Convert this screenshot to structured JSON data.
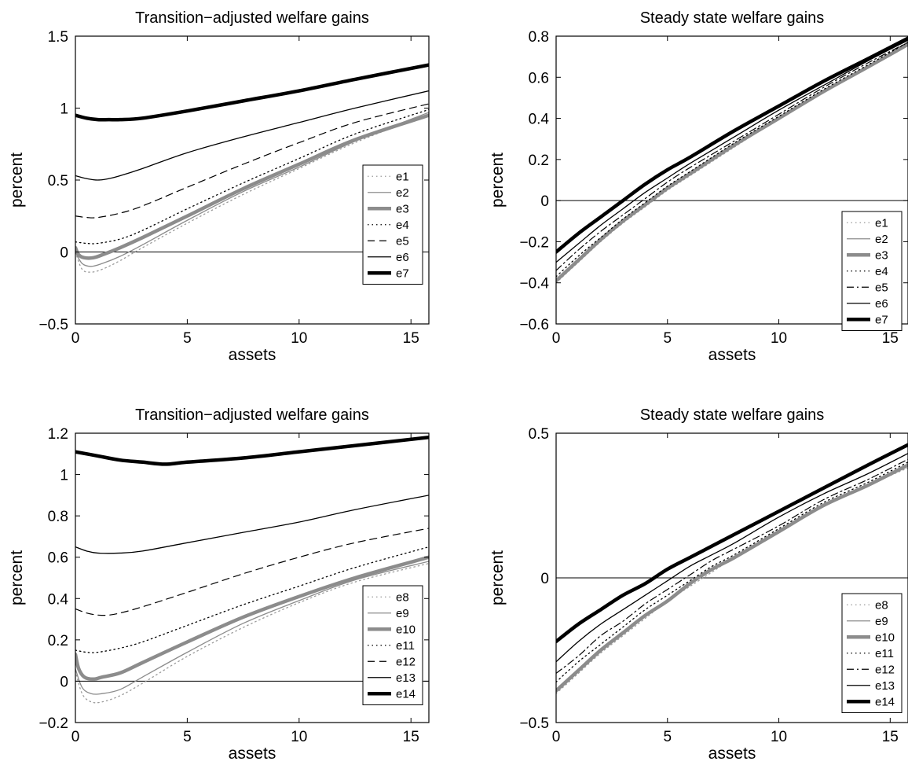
{
  "chart_data": [
    {
      "type": "line",
      "title": "Transition−adjusted welfare gains",
      "xlabel": "assets",
      "ylabel": "percent",
      "xlim": [
        0,
        15.8
      ],
      "ylim": [
        -0.5,
        1.5
      ],
      "xticks": [
        0,
        5,
        10,
        15
      ],
      "yticks": [
        -0.5,
        0,
        0.5,
        1,
        1.5
      ],
      "xtick_labels": [
        "0",
        "5",
        "10",
        "15"
      ],
      "ytick_labels": [
        "−0.5",
        "0",
        "0.5",
        "1",
        "1.5"
      ],
      "zero_line": true,
      "legend": "center-right",
      "series": [
        {
          "name": "e1",
          "style": "dotted-gray",
          "x": [
            0,
            0.3,
            0.7,
            1.2,
            2,
            3,
            5,
            7.5,
            10,
            12.5,
            15.8
          ],
          "y": [
            0.0,
            -0.12,
            -0.14,
            -0.12,
            -0.06,
            0.03,
            0.2,
            0.4,
            0.58,
            0.76,
            0.96
          ]
        },
        {
          "name": "e2",
          "style": "thin-gray",
          "x": [
            0,
            0.3,
            0.7,
            1.2,
            2,
            3,
            5,
            7.5,
            10,
            12.5,
            15.8
          ],
          "y": [
            0.0,
            -0.08,
            -0.1,
            -0.08,
            -0.03,
            0.05,
            0.22,
            0.42,
            0.59,
            0.77,
            0.97
          ]
        },
        {
          "name": "e3",
          "style": "thick-gray",
          "x": [
            0,
            0.15,
            0.4,
            0.8,
            1.2,
            2,
            3,
            5,
            7.5,
            10,
            12.5,
            15.8
          ],
          "y": [
            0.03,
            -0.02,
            -0.04,
            -0.04,
            -0.02,
            0.03,
            0.1,
            0.25,
            0.44,
            0.61,
            0.78,
            0.95
          ]
        },
        {
          "name": "e4",
          "style": "dotted-black",
          "x": [
            0,
            0.5,
            1,
            2,
            3,
            5,
            7.5,
            10,
            12.5,
            15.8
          ],
          "y": [
            0.07,
            0.06,
            0.06,
            0.09,
            0.15,
            0.3,
            0.48,
            0.65,
            0.82,
            0.99
          ]
        },
        {
          "name": "e5",
          "style": "dashed-black",
          "x": [
            0,
            0.5,
            1,
            2,
            3,
            5,
            7.5,
            10,
            12.5,
            15.8
          ],
          "y": [
            0.25,
            0.24,
            0.24,
            0.27,
            0.32,
            0.45,
            0.61,
            0.76,
            0.9,
            1.03
          ]
        },
        {
          "name": "e6",
          "style": "thin-black",
          "x": [
            0,
            0.5,
            1,
            1.5,
            2,
            3,
            5,
            7.5,
            10,
            12.5,
            15.8
          ],
          "y": [
            0.53,
            0.51,
            0.5,
            0.51,
            0.53,
            0.58,
            0.69,
            0.8,
            0.9,
            1.0,
            1.12
          ]
        },
        {
          "name": "e7",
          "style": "thick-black",
          "x": [
            0,
            0.5,
            1,
            1.5,
            2,
            3,
            5,
            7.5,
            10,
            12.5,
            15.8
          ],
          "y": [
            0.95,
            0.93,
            0.92,
            0.92,
            0.92,
            0.93,
            0.98,
            1.05,
            1.12,
            1.2,
            1.3
          ]
        }
      ]
    },
    {
      "type": "line",
      "title": "Steady state welfare gains",
      "xlabel": "assets",
      "ylabel": "percent",
      "xlim": [
        0,
        15.8
      ],
      "ylim": [
        -0.6,
        0.8
      ],
      "xticks": [
        0,
        5,
        10,
        15
      ],
      "yticks": [
        -0.6,
        -0.4,
        -0.2,
        0,
        0.2,
        0.4,
        0.6,
        0.8
      ],
      "xtick_labels": [
        "0",
        "5",
        "10",
        "15"
      ],
      "ytick_labels": [
        "−0.6",
        "−0.4",
        "−0.2",
        "0",
        "0.2",
        "0.4",
        "0.6",
        "0.8"
      ],
      "zero_line": true,
      "legend": "bottom-right",
      "series": [
        {
          "name": "e1",
          "style": "dotted-gray",
          "x": [
            0,
            1,
            2,
            3,
            4,
            5,
            6,
            8,
            10,
            12,
            14,
            15.8
          ],
          "y": [
            -0.4,
            -0.3,
            -0.2,
            -0.11,
            -0.03,
            0.05,
            0.12,
            0.26,
            0.4,
            0.53,
            0.65,
            0.76
          ]
        },
        {
          "name": "e2",
          "style": "thin-gray",
          "x": [
            0,
            1,
            2,
            3,
            4,
            5,
            6,
            8,
            10,
            12,
            14,
            15.8
          ],
          "y": [
            -0.39,
            -0.29,
            -0.19,
            -0.1,
            -0.02,
            0.06,
            0.13,
            0.27,
            0.4,
            0.53,
            0.65,
            0.76
          ]
        },
        {
          "name": "e3",
          "style": "thick-gray",
          "x": [
            0,
            1,
            2,
            3,
            4,
            5,
            6,
            8,
            10,
            12,
            14,
            15.8
          ],
          "y": [
            -0.39,
            -0.29,
            -0.19,
            -0.1,
            -0.02,
            0.06,
            0.13,
            0.27,
            0.4,
            0.53,
            0.65,
            0.76
          ]
        },
        {
          "name": "e4",
          "style": "dotted-black",
          "x": [
            0,
            1,
            2,
            3,
            4,
            5,
            6,
            8,
            10,
            12,
            14,
            15.8
          ],
          "y": [
            -0.37,
            -0.27,
            -0.18,
            -0.09,
            -0.01,
            0.07,
            0.14,
            0.28,
            0.41,
            0.54,
            0.66,
            0.77
          ]
        },
        {
          "name": "e5",
          "style": "dashdot-black",
          "x": [
            0,
            1,
            2,
            3,
            4,
            5,
            6,
            8,
            10,
            12,
            14,
            15.8
          ],
          "y": [
            -0.34,
            -0.24,
            -0.15,
            -0.07,
            0.01,
            0.09,
            0.16,
            0.29,
            0.42,
            0.55,
            0.67,
            0.77
          ]
        },
        {
          "name": "e6",
          "style": "thin-black",
          "x": [
            0,
            1,
            2,
            3,
            4,
            5,
            6,
            8,
            10,
            12,
            14,
            15.8
          ],
          "y": [
            -0.3,
            -0.21,
            -0.12,
            -0.04,
            0.04,
            0.11,
            0.18,
            0.31,
            0.44,
            0.56,
            0.68,
            0.78
          ]
        },
        {
          "name": "e7",
          "style": "thick-black",
          "x": [
            0,
            1,
            2,
            3,
            4,
            5,
            6,
            8,
            10,
            12,
            14,
            15.8
          ],
          "y": [
            -0.25,
            -0.16,
            -0.08,
            0.0,
            0.08,
            0.15,
            0.21,
            0.34,
            0.46,
            0.58,
            0.69,
            0.79
          ]
        }
      ]
    },
    {
      "type": "line",
      "title": "Transition−adjusted welfare gains",
      "xlabel": "assets",
      "ylabel": "percent",
      "xlim": [
        0,
        15.8
      ],
      "ylim": [
        -0.2,
        1.2
      ],
      "xticks": [
        0,
        5,
        10,
        15
      ],
      "yticks": [
        -0.2,
        0,
        0.2,
        0.4,
        0.6,
        0.8,
        1,
        1.2
      ],
      "xtick_labels": [
        "0",
        "5",
        "10",
        "15"
      ],
      "ytick_labels": [
        "−0.2",
        "0",
        "0.2",
        "0.4",
        "0.6",
        "0.8",
        "1",
        "1.2"
      ],
      "zero_line": true,
      "legend": "bottom-right",
      "series": [
        {
          "name": "e8",
          "style": "dotted-gray",
          "x": [
            0,
            0.3,
            0.7,
            1.2,
            2,
            3,
            5,
            7.5,
            10,
            12.5,
            15.8
          ],
          "y": [
            0.05,
            -0.06,
            -0.1,
            -0.1,
            -0.07,
            -0.01,
            0.12,
            0.26,
            0.38,
            0.48,
            0.57
          ]
        },
        {
          "name": "e9",
          "style": "thin-gray",
          "x": [
            0,
            0.3,
            0.7,
            1.2,
            2,
            3,
            5,
            7.5,
            10,
            12.5,
            15.8
          ],
          "y": [
            0.06,
            -0.03,
            -0.06,
            -0.06,
            -0.04,
            0.02,
            0.14,
            0.28,
            0.39,
            0.49,
            0.58
          ]
        },
        {
          "name": "e10",
          "style": "thick-gray",
          "x": [
            0,
            0.15,
            0.4,
            0.8,
            1.2,
            2,
            3,
            5,
            7.5,
            10,
            12.5,
            15.8
          ],
          "y": [
            0.13,
            0.06,
            0.02,
            0.01,
            0.02,
            0.04,
            0.09,
            0.19,
            0.31,
            0.41,
            0.5,
            0.6
          ]
        },
        {
          "name": "e11",
          "style": "dotted-black",
          "x": [
            0,
            0.5,
            1,
            2,
            3,
            5,
            7.5,
            10,
            12.5,
            15.8
          ],
          "y": [
            0.15,
            0.14,
            0.14,
            0.16,
            0.19,
            0.27,
            0.37,
            0.46,
            0.55,
            0.65
          ]
        },
        {
          "name": "e12",
          "style": "dashed-black",
          "x": [
            0,
            0.5,
            1,
            1.5,
            2,
            3,
            5,
            7.5,
            10,
            12.5,
            15.8
          ],
          "y": [
            0.35,
            0.33,
            0.32,
            0.32,
            0.33,
            0.36,
            0.43,
            0.52,
            0.6,
            0.67,
            0.74
          ]
        },
        {
          "name": "e13",
          "style": "thin-black",
          "x": [
            0,
            0.5,
            1,
            2,
            3,
            5,
            7.5,
            10,
            12.5,
            15.8
          ],
          "y": [
            0.65,
            0.63,
            0.62,
            0.62,
            0.63,
            0.67,
            0.72,
            0.77,
            0.83,
            0.9
          ]
        },
        {
          "name": "e14",
          "style": "thick-black",
          "x": [
            0,
            1,
            2,
            3,
            4,
            5,
            7.5,
            10,
            12.5,
            15.8
          ],
          "y": [
            1.11,
            1.09,
            1.07,
            1.06,
            1.05,
            1.06,
            1.08,
            1.11,
            1.14,
            1.18
          ]
        }
      ]
    },
    {
      "type": "line",
      "title": "Steady state welfare gains",
      "xlabel": "assets",
      "ylabel": "percent",
      "xlim": [
        0,
        15.8
      ],
      "ylim": [
        -0.5,
        0.5
      ],
      "xticks": [
        0,
        5,
        10,
        15
      ],
      "yticks": [
        -0.5,
        0,
        0.5
      ],
      "xtick_labels": [
        "0",
        "5",
        "10",
        "15"
      ],
      "ytick_labels": [
        "−0.5",
        "0",
        "0.5"
      ],
      "zero_line": true,
      "legend": "bottom-right",
      "series": [
        {
          "name": "e8",
          "style": "dotted-gray",
          "x": [
            0,
            1,
            2,
            3,
            4,
            5,
            6,
            7,
            8,
            10,
            12,
            14,
            15.8
          ],
          "y": [
            -0.4,
            -0.33,
            -0.26,
            -0.2,
            -0.14,
            -0.08,
            -0.03,
            0.02,
            0.07,
            0.16,
            0.25,
            0.32,
            0.38
          ]
        },
        {
          "name": "e9",
          "style": "thin-gray",
          "x": [
            0,
            1,
            2,
            3,
            4,
            5,
            6,
            7,
            8,
            10,
            12,
            14,
            15.8
          ],
          "y": [
            -0.39,
            -0.32,
            -0.25,
            -0.19,
            -0.13,
            -0.08,
            -0.02,
            0.03,
            0.07,
            0.16,
            0.25,
            0.32,
            0.39
          ]
        },
        {
          "name": "e10",
          "style": "thick-gray",
          "x": [
            0,
            1,
            2,
            3,
            4,
            5,
            6,
            7,
            8,
            10,
            12,
            14,
            15.8
          ],
          "y": [
            -0.39,
            -0.32,
            -0.25,
            -0.19,
            -0.13,
            -0.08,
            -0.02,
            0.03,
            0.07,
            0.16,
            0.25,
            0.32,
            0.39
          ]
        },
        {
          "name": "e11",
          "style": "dotted-black",
          "x": [
            0,
            1,
            2,
            3,
            4,
            5,
            6,
            7,
            8,
            10,
            12,
            14,
            15.8
          ],
          "y": [
            -0.36,
            -0.29,
            -0.23,
            -0.17,
            -0.11,
            -0.06,
            -0.01,
            0.04,
            0.08,
            0.17,
            0.26,
            0.33,
            0.4
          ]
        },
        {
          "name": "e12",
          "style": "dashdot-black",
          "x": [
            0,
            1,
            2,
            3,
            4,
            5,
            6,
            7,
            8,
            10,
            12,
            14,
            15.8
          ],
          "y": [
            -0.33,
            -0.27,
            -0.2,
            -0.15,
            -0.09,
            -0.04,
            0.01,
            0.06,
            0.1,
            0.18,
            0.27,
            0.34,
            0.41
          ]
        },
        {
          "name": "e13",
          "style": "thin-black",
          "x": [
            0,
            1,
            2,
            3,
            4,
            5,
            6,
            7,
            8,
            10,
            12,
            14,
            15.8
          ],
          "y": [
            -0.29,
            -0.22,
            -0.16,
            -0.11,
            -0.06,
            -0.01,
            0.04,
            0.08,
            0.12,
            0.21,
            0.29,
            0.36,
            0.43
          ]
        },
        {
          "name": "e14",
          "style": "thick-black",
          "x": [
            0,
            1,
            2,
            3,
            4,
            5,
            6,
            7,
            8,
            10,
            12,
            14,
            15.8
          ],
          "y": [
            -0.22,
            -0.16,
            -0.11,
            -0.06,
            -0.02,
            0.03,
            0.07,
            0.11,
            0.15,
            0.23,
            0.31,
            0.39,
            0.46
          ]
        }
      ]
    }
  ]
}
